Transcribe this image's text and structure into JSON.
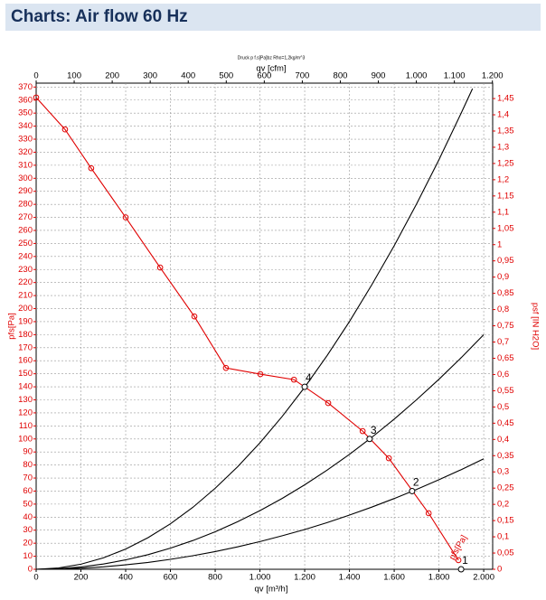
{
  "header": {
    "title": "Charts: Air flow 60 Hz"
  },
  "chart_data": {
    "type": "line",
    "title": "Druck p f.s[Pa]bz Rho=1,2kg/m^3",
    "x_label": "qv [m³/h]",
    "x2_label": "qv [cfm]",
    "y_label": "pfs[Pa]",
    "y2_label": "psf [IN H2O]",
    "curve_label": "pfs[Pa]",
    "grid": true,
    "xlim": [
      0,
      2040
    ],
    "xticks": [
      0,
      200,
      400,
      600,
      800,
      {
        "value": 1000,
        "label": "1.000"
      },
      {
        "value": 1200,
        "label": "1.200"
      },
      {
        "value": 1400,
        "label": "1.400"
      },
      {
        "value": 1600,
        "label": "1.600"
      },
      {
        "value": 1800,
        "label": "1.800"
      },
      {
        "value": 2000,
        "label": "2.000"
      }
    ],
    "x2lim": [
      0,
      1200.7
    ],
    "x2ticks": [
      0,
      100,
      200,
      300,
      400,
      500,
      600,
      700,
      800,
      900,
      {
        "value": 1000,
        "label": "1.000"
      },
      {
        "value": 1100,
        "label": "1.100"
      },
      {
        "value": 1200,
        "label": "1.200"
      }
    ],
    "ylim": [
      0,
      373
    ],
    "yticks": [
      0,
      10,
      20,
      30,
      40,
      50,
      60,
      70,
      80,
      90,
      100,
      110,
      120,
      130,
      140,
      150,
      160,
      170,
      180,
      190,
      200,
      210,
      220,
      230,
      240,
      250,
      260,
      270,
      280,
      290,
      300,
      310,
      320,
      330,
      340,
      350,
      360,
      370
    ],
    "y2lim": [
      0,
      1.4975
    ],
    "y2ticks": [
      0,
      {
        "value": 0.05,
        "label": "0,05"
      },
      {
        "value": 0.1,
        "label": "0,1"
      },
      {
        "value": 0.15,
        "label": "0,15"
      },
      {
        "value": 0.2,
        "label": "0,2"
      },
      {
        "value": 0.25,
        "label": "0,25"
      },
      {
        "value": 0.3,
        "label": "0,3"
      },
      {
        "value": 0.35,
        "label": "0,35"
      },
      {
        "value": 0.4,
        "label": "0,4"
      },
      {
        "value": 0.45,
        "label": "0,45"
      },
      {
        "value": 0.5,
        "label": "0,5"
      },
      {
        "value": 0.55,
        "label": "0,55"
      },
      {
        "value": 0.6,
        "label": "0,6"
      },
      {
        "value": 0.65,
        "label": "0,65"
      },
      {
        "value": 0.7,
        "label": "0,7"
      },
      {
        "value": 0.75,
        "label": "0,75"
      },
      {
        "value": 0.8,
        "label": "0,8"
      },
      {
        "value": 0.85,
        "label": "0,85"
      },
      {
        "value": 0.9,
        "label": "0,9"
      },
      {
        "value": 0.95,
        "label": "0,95"
      },
      1,
      {
        "value": 1.05,
        "label": "1,05"
      },
      {
        "value": 1.1,
        "label": "1,1"
      },
      {
        "value": 1.15,
        "label": "1,15"
      },
      {
        "value": 1.2,
        "label": "1,2"
      },
      {
        "value": 1.25,
        "label": "1,25"
      },
      {
        "value": 1.3,
        "label": "1,3"
      },
      {
        "value": 1.35,
        "label": "1,35"
      },
      {
        "value": 1.4,
        "label": "1,4"
      },
      {
        "value": 1.45,
        "label": "1,45"
      }
    ],
    "series": [
      {
        "color": "#e00000",
        "markers": true,
        "x": [
          0,
          129,
          246,
          400,
          554,
          707,
          848,
          1002,
          1152,
          1305,
          1459,
          1576,
          1754,
          1887
        ],
        "values": [
          362,
          337.5,
          307.7,
          270,
          231.5,
          194,
          154.5,
          149.7,
          145.5,
          127.5,
          106,
          85.2,
          43,
          7
        ]
      },
      {
        "color": "#000000",
        "markers": false,
        "x": [
          0,
          100,
          200,
          300,
          400,
          500,
          600,
          700,
          800,
          900,
          1000,
          1100,
          1200,
          1300,
          1400,
          1500,
          1600,
          1700,
          1800,
          1900,
          1950
        ],
        "values": [
          0,
          0.97,
          3.88,
          8.73,
          15.5,
          24.3,
          34.9,
          47.5,
          62.1,
          78.6,
          97,
          117.4,
          139.7,
          163.9,
          190.1,
          218.3,
          248.3,
          280.3,
          314.3,
          350.2,
          368.8
        ]
      },
      {
        "color": "#000000",
        "markers": false,
        "x": [
          0,
          100,
          200,
          300,
          400,
          500,
          600,
          700,
          800,
          900,
          1000,
          1100,
          1200,
          1300,
          1400,
          1500,
          1600,
          1700,
          1800,
          1900,
          2000
        ],
        "values": [
          0,
          0.45,
          1.8,
          4.05,
          7.2,
          11.25,
          16.2,
          22.05,
          28.8,
          36.45,
          45,
          54.45,
          64.8,
          76.05,
          88.2,
          101.25,
          115.2,
          130.05,
          145.8,
          162.45,
          180
        ]
      },
      {
        "color": "#000000",
        "markers": false,
        "x": [
          0,
          100,
          200,
          300,
          400,
          500,
          600,
          700,
          800,
          900,
          1000,
          1100,
          1200,
          1300,
          1400,
          1500,
          1600,
          1700,
          1800,
          1900,
          2000
        ],
        "values": [
          0,
          0.2,
          0.8,
          1.9,
          3.4,
          5.3,
          7.6,
          10.4,
          13.6,
          17.2,
          21.2,
          25.7,
          30.5,
          35.8,
          41.6,
          47.7,
          54.3,
          61.3,
          68.7,
          76.5,
          84.8
        ]
      }
    ],
    "operating_points": [
      {
        "label": "1",
        "x": 1899,
        "y": 0
      },
      {
        "label": "2",
        "x": 1680,
        "y": 60
      },
      {
        "label": "3",
        "x": 1490,
        "y": 100
      },
      {
        "label": "4",
        "x": 1200,
        "y": 140
      }
    ]
  }
}
